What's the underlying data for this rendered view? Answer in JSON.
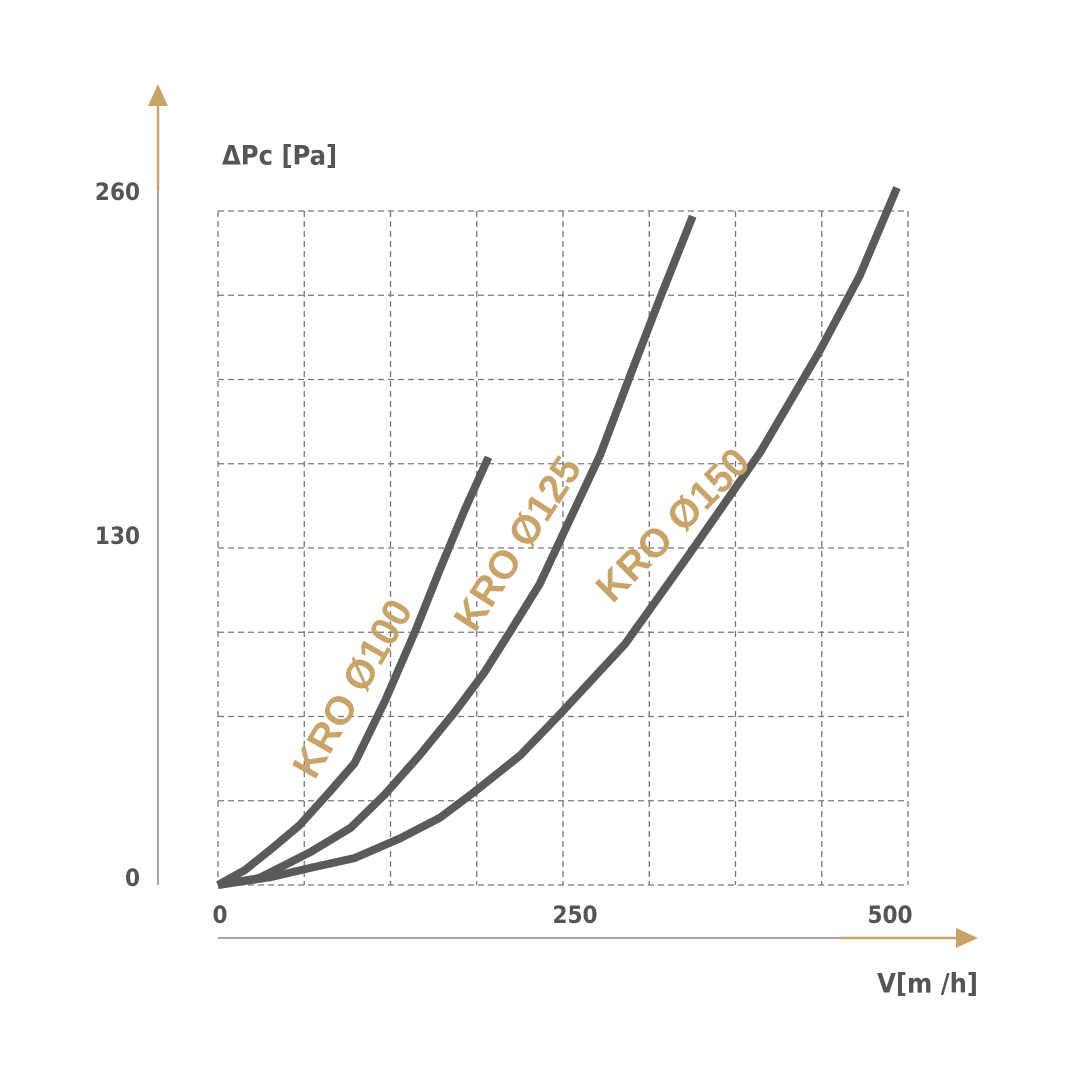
{
  "chart_data": {
    "type": "line",
    "x_label": "V[m /h]",
    "y_label": "ΔPc [Pa]",
    "xlim": [
      0,
      500
    ],
    "ylim": [
      0,
      260
    ],
    "xticks": [
      0,
      250,
      500
    ],
    "yticks": [
      0,
      130,
      260
    ],
    "grid": true,
    "series": [
      {
        "name": "KRO Ø100",
        "color": "#5a5a5a",
        "x": [
          0,
          19.6,
          37.7,
          59,
          81,
          99,
          121,
          143,
          161,
          179,
          196
        ],
        "values": [
          0,
          5.8,
          13.5,
          23,
          36,
          47,
          71,
          98,
          122,
          145,
          165
        ]
      },
      {
        "name": "KRO Ø125",
        "color": "#5a5a5a",
        "x": [
          0,
          30,
          67,
          96,
          121,
          146,
          172,
          193,
          212,
          233,
          255,
          277,
          299,
          320,
          344
        ],
        "values": [
          0,
          2.7,
          12.7,
          22,
          35,
          50,
          67,
          82,
          98,
          116,
          141,
          166,
          197,
          226,
          258
        ]
      },
      {
        "name": "KRO Ø150",
        "color": "#5a5a5a",
        "x": [
          0,
          38,
          67,
          99,
          132,
          161,
          186,
          219,
          248,
          295,
          342,
          393,
          436,
          465,
          492
        ],
        "values": [
          0,
          3,
          6.6,
          10.4,
          18,
          26,
          36,
          50,
          66,
          93,
          128,
          167,
          206,
          235,
          269
        ]
      }
    ]
  }
}
